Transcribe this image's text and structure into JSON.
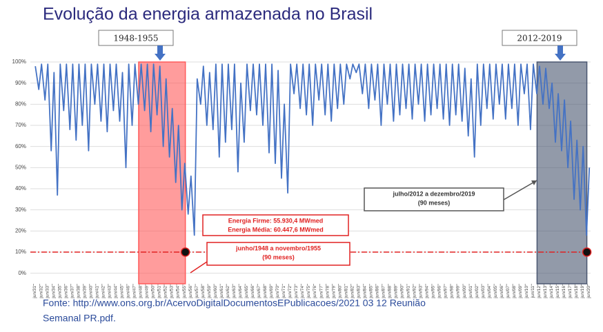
{
  "title": "Evolução da energia armazenada no Brasil",
  "source": [
    "Fonte: http://www.ons.org.br/AcervoDigitalDocumentosEPublicacoes/2021 03 12 Reunião",
    "Semanal PR.pdf."
  ],
  "chart_data": {
    "type": "line",
    "x": [
      1931.3,
      1931.85,
      1932.3,
      1932.85,
      1933.3,
      1933.85,
      1934.3,
      1934.85,
      1935.3,
      1935.85,
      1936.3,
      1936.85,
      1937.3,
      1937.85,
      1938.3,
      1938.85,
      1939.3,
      1939.85,
      1940.3,
      1940.85,
      1941.3,
      1941.85,
      1942.3,
      1942.85,
      1943.3,
      1943.85,
      1944.3,
      1944.85,
      1945.3,
      1945.85,
      1946.3,
      1946.85,
      1947.3,
      1947.85,
      1948.3,
      1948.85,
      1949.3,
      1949.85,
      1950.3,
      1950.85,
      1951.3,
      1951.85,
      1952.3,
      1952.85,
      1953.3,
      1953.85,
      1954.3,
      1954.85,
      1955.3,
      1955.85,
      1956.3,
      1956.85,
      1957.3,
      1957.85,
      1958.3,
      1958.85,
      1959.3,
      1959.85,
      1960.3,
      1960.85,
      1961.3,
      1961.85,
      1962.3,
      1962.85,
      1963.3,
      1963.85,
      1964.3,
      1964.85,
      1965.3,
      1965.85,
      1966.3,
      1966.85,
      1967.3,
      1967.85,
      1968.3,
      1968.85,
      1969.3,
      1969.85,
      1970.3,
      1970.85,
      1971.3,
      1971.85,
      1972.3,
      1972.85,
      1973.3,
      1973.85,
      1974.3,
      1974.85,
      1975.3,
      1975.85,
      1976.3,
      1976.85,
      1977.3,
      1977.85,
      1978.3,
      1978.85,
      1979.3,
      1979.85,
      1980.3,
      1980.85,
      1981.3,
      1981.85,
      1982.3,
      1982.85,
      1983.3,
      1983.85,
      1984.3,
      1984.85,
      1985.3,
      1985.85,
      1986.3,
      1986.85,
      1987.3,
      1987.85,
      1988.3,
      1988.85,
      1989.3,
      1989.85,
      1990.3,
      1990.85,
      1991.3,
      1991.85,
      1992.3,
      1992.85,
      1993.3,
      1993.85,
      1994.3,
      1994.85,
      1995.3,
      1995.85,
      1996.3,
      1996.85,
      1997.3,
      1997.85,
      1998.3,
      1998.85,
      1999.3,
      1999.85,
      2000.3,
      2000.85,
      2001.3,
      2001.85,
      2002.3,
      2002.85,
      2003.3,
      2003.85,
      2004.3,
      2004.85,
      2005.3,
      2005.85,
      2006.3,
      2006.85,
      2007.3,
      2007.85,
      2008.3,
      2008.85,
      2009.3,
      2009.85,
      2010.3,
      2010.85,
      2011.3,
      2011.85,
      2012.3,
      2012.85,
      2013.3,
      2013.85,
      2014.3,
      2014.85,
      2015.3,
      2015.85,
      2016.3,
      2016.85,
      2017.3,
      2017.85,
      2018.3,
      2018.85,
      2019.3,
      2019.85,
      2020.3
    ],
    "series": [
      {
        "color": "#4472c4",
        "values": [
          98,
          87,
          99,
          82,
          99,
          58,
          95,
          37,
          99,
          77,
          99,
          68,
          99,
          63,
          99,
          70,
          99,
          58,
          99,
          80,
          99,
          72,
          99,
          67,
          99,
          77,
          99,
          72,
          95,
          50,
          99,
          70,
          99,
          80,
          99,
          77,
          99,
          67,
          99,
          75,
          98,
          60,
          92,
          55,
          78,
          43,
          70,
          30,
          52,
          28,
          46,
          18,
          92,
          80,
          98,
          70,
          95,
          68,
          99,
          55,
          99,
          62,
          99,
          68,
          99,
          48,
          90,
          62,
          99,
          77,
          99,
          75,
          99,
          70,
          99,
          57,
          99,
          52,
          96,
          45,
          80,
          38,
          99,
          85,
          99,
          78,
          99,
          75,
          99,
          70,
          99,
          82,
          99,
          75,
          99,
          72,
          99,
          78,
          99,
          80,
          99,
          92,
          99,
          95,
          99,
          85,
          99,
          78,
          99,
          82,
          99,
          70,
          99,
          80,
          99,
          72,
          99,
          75,
          99,
          78,
          99,
          73,
          99,
          80,
          99,
          72,
          99,
          75,
          99,
          78,
          99,
          73,
          99,
          70,
          99,
          75,
          99,
          72,
          97,
          65,
          92,
          55,
          99,
          70,
          99,
          78,
          99,
          73,
          99,
          80,
          99,
          73,
          99,
          78,
          99,
          70,
          99,
          85,
          99,
          68,
          99,
          85,
          98,
          80,
          97,
          78,
          90,
          62,
          85,
          58,
          82,
          50,
          72,
          35,
          63,
          30,
          60,
          18,
          50
        ]
      }
    ],
    "xlim": [
      1930.5,
      2020.5
    ],
    "ylim": [
      -5,
      100
    ],
    "yticks": [
      {
        "value": 0,
        "label": "0%"
      },
      {
        "value": 10,
        "label": "10%"
      },
      {
        "value": 20,
        "label": "20%"
      },
      {
        "value": 30,
        "label": "30%"
      },
      {
        "value": 40,
        "label": "40%"
      },
      {
        "value": 50,
        "label": "50%"
      },
      {
        "value": 60,
        "label": "60%"
      },
      {
        "value": 70,
        "label": "70%"
      },
      {
        "value": 80,
        "label": "80%"
      },
      {
        "value": 90,
        "label": "90%"
      },
      {
        "value": 100,
        "label": "100%"
      }
    ],
    "xticks": [
      {
        "value": 1931,
        "label": "jun/31"
      },
      {
        "value": 1932,
        "label": "jun/32"
      },
      {
        "value": 1933,
        "label": "jun/33"
      },
      {
        "value": 1934,
        "label": "jun/34"
      },
      {
        "value": 1935,
        "label": "jun/35"
      },
      {
        "value": 1936,
        "label": "jun/36"
      },
      {
        "value": 1937,
        "label": "jun/37"
      },
      {
        "value": 1938,
        "label": "jun/38"
      },
      {
        "value": 1939,
        "label": "jun/39"
      },
      {
        "value": 1940,
        "label": "jun/40"
      },
      {
        "value": 1941,
        "label": "jun/41"
      },
      {
        "value": 1942,
        "label": "jun/42"
      },
      {
        "value": 1943,
        "label": "jun/43"
      },
      {
        "value": 1944,
        "label": "jun/44"
      },
      {
        "value": 1945,
        "label": "jun/45"
      },
      {
        "value": 1946,
        "label": "jun/46"
      },
      {
        "value": 1947,
        "label": "jun/47"
      },
      {
        "value": 1948,
        "label": "jun/48"
      },
      {
        "value": 1949,
        "label": "jun/49"
      },
      {
        "value": 1950,
        "label": "jun/50"
      },
      {
        "value": 1951,
        "label": "jun/51"
      },
      {
        "value": 1952,
        "label": "jun/52"
      },
      {
        "value": 1953,
        "label": "jun/53"
      },
      {
        "value": 1954,
        "label": "jun/54"
      },
      {
        "value": 1955,
        "label": "jun/55"
      },
      {
        "value": 1956,
        "label": "jun/56"
      },
      {
        "value": 1957,
        "label": "jun/57"
      },
      {
        "value": 1958,
        "label": "jun/58"
      },
      {
        "value": 1959,
        "label": "jun/59"
      },
      {
        "value": 1960,
        "label": "jun/60"
      },
      {
        "value": 1961,
        "label": "jun/61"
      },
      {
        "value": 1962,
        "label": "jun/62"
      },
      {
        "value": 1963,
        "label": "jun/63"
      },
      {
        "value": 1964,
        "label": "jun/64"
      },
      {
        "value": 1965,
        "label": "jun/65"
      },
      {
        "value": 1966,
        "label": "jun/66"
      },
      {
        "value": 1967,
        "label": "jun/67"
      },
      {
        "value": 1968,
        "label": "jun/68"
      },
      {
        "value": 1969,
        "label": "jun/69"
      },
      {
        "value": 1970,
        "label": "jun/70"
      },
      {
        "value": 1971,
        "label": "jun/71"
      },
      {
        "value": 1972,
        "label": "jun/72"
      },
      {
        "value": 1973,
        "label": "jun/73"
      },
      {
        "value": 1974,
        "label": "jun/74"
      },
      {
        "value": 1975,
        "label": "jun/75"
      },
      {
        "value": 1976,
        "label": "jun/76"
      },
      {
        "value": 1977,
        "label": "jun/77"
      },
      {
        "value": 1978,
        "label": "jun/78"
      },
      {
        "value": 1979,
        "label": "jun/79"
      },
      {
        "value": 1980,
        "label": "jun/80"
      },
      {
        "value": 1981,
        "label": "jun/81"
      },
      {
        "value": 1982,
        "label": "jun/82"
      },
      {
        "value": 1983,
        "label": "jun/83"
      },
      {
        "value": 1984,
        "label": "jun/84"
      },
      {
        "value": 1985,
        "label": "jun/85"
      },
      {
        "value": 1986,
        "label": "jun/86"
      },
      {
        "value": 1987,
        "label": "jun/87"
      },
      {
        "value": 1988,
        "label": "jun/88"
      },
      {
        "value": 1989,
        "label": "jun/89"
      },
      {
        "value": 1990,
        "label": "jun/90"
      },
      {
        "value": 1991,
        "label": "jun/91"
      },
      {
        "value": 1992,
        "label": "jun/92"
      },
      {
        "value": 1993,
        "label": "jun/93"
      },
      {
        "value": 1994,
        "label": "jun/94"
      },
      {
        "value": 1995,
        "label": "jun/95"
      },
      {
        "value": 1996,
        "label": "jun/96"
      },
      {
        "value": 1997,
        "label": "jun/97"
      },
      {
        "value": 1998,
        "label": "jun/98"
      },
      {
        "value": 1999,
        "label": "jun/99"
      },
      {
        "value": 2000,
        "label": "jun/00"
      },
      {
        "value": 2001,
        "label": "jun/01"
      },
      {
        "value": 2002,
        "label": "jun/02"
      },
      {
        "value": 2003,
        "label": "jun/03"
      },
      {
        "value": 2004,
        "label": "jun/04"
      },
      {
        "value": 2005,
        "label": "jun/05"
      },
      {
        "value": 2006,
        "label": "jun/06"
      },
      {
        "value": 2007,
        "label": "jun/07"
      },
      {
        "value": 2008,
        "label": "jun/08"
      },
      {
        "value": 2009,
        "label": "jun/09"
      },
      {
        "value": 2010,
        "label": "jun/10"
      },
      {
        "value": 2011,
        "label": "jun/11"
      },
      {
        "value": 2012,
        "label": "jun/12"
      },
      {
        "value": 2013,
        "label": "jun/13"
      },
      {
        "value": 2014,
        "label": "jun/14"
      },
      {
        "value": 2015,
        "label": "jun/15"
      },
      {
        "value": 2016,
        "label": "jun/16"
      },
      {
        "value": 2017,
        "label": "jun/17"
      },
      {
        "value": 2018,
        "label": "jun/18"
      },
      {
        "value": 2019,
        "label": "jun/19"
      },
      {
        "value": 2020,
        "label": "jun/20"
      }
    ],
    "grid": true,
    "threshold": {
      "value": 10,
      "color": "#e02020"
    },
    "highlights": [
      {
        "label": "1948-1955",
        "x": [
          1947.9,
          1955.4
        ],
        "color": "#ff5a5a"
      },
      {
        "label": "2012-2019",
        "x": [
          2011.9,
          2019.9
        ],
        "color": "#4a5670"
      }
    ],
    "annotations": [
      {
        "lines": [
          "Energia Firme: 55.930,4 MWmed",
          "Energia Média: 60.447,6 MWmed"
        ],
        "color": "#e02020"
      },
      {
        "lines": [
          "junho/1948 a novembro/1955",
          "(90 meses)"
        ],
        "color": "#e02020"
      },
      {
        "lines": [
          "julho/2012 a dezembro/2019",
          "(90 meses)"
        ],
        "color": "#333333"
      }
    ]
  }
}
